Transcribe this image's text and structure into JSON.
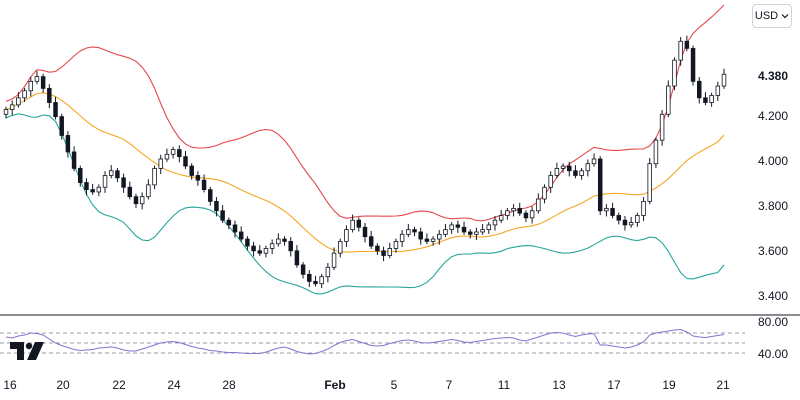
{
  "currency": {
    "label": "USD",
    "icon": "chevron-down-icon"
  },
  "logo": {
    "icon": "tradingview-logo-icon"
  },
  "colors": {
    "upper_band": "#e5484d",
    "middle_band": "#f5a623",
    "lower_band": "#26a69a",
    "rsi_line": "#8c6fd1",
    "candle": "#131722"
  },
  "chart_data": [
    {
      "type": "candlestick",
      "indicator": "Bollinger Bands",
      "ylim": [
        3.35,
        4.65
      ],
      "y_ticks": [
        "4.380",
        "4.200",
        "4.000",
        "3.800",
        "3.600",
        "3.400"
      ],
      "x_ticks": [
        "16",
        "20",
        "22",
        "24",
        "28",
        "Feb",
        "5",
        "7",
        "11",
        "13",
        "17",
        "19",
        "21"
      ],
      "grid": false,
      "close": [
        4.21,
        4.23,
        4.26,
        4.29,
        4.33,
        4.35,
        4.3,
        4.24,
        4.18,
        4.1,
        4.03,
        3.96,
        3.9,
        3.87,
        3.86,
        3.88,
        3.93,
        3.95,
        3.92,
        3.88,
        3.84,
        3.81,
        3.84,
        3.89,
        3.96,
        4.0,
        4.02,
        4.04,
        4.01,
        3.97,
        3.93,
        3.91,
        3.87,
        3.82,
        3.78,
        3.74,
        3.72,
        3.69,
        3.66,
        3.63,
        3.61,
        3.6,
        3.62,
        3.64,
        3.66,
        3.65,
        3.61,
        3.55,
        3.51,
        3.48,
        3.47,
        3.5,
        3.54,
        3.6,
        3.65,
        3.7,
        3.74,
        3.71,
        3.67,
        3.63,
        3.61,
        3.59,
        3.62,
        3.65,
        3.68,
        3.7,
        3.69,
        3.66,
        3.65,
        3.66,
        3.68,
        3.7,
        3.72,
        3.71,
        3.69,
        3.68,
        3.69,
        3.7,
        3.72,
        3.74,
        3.76,
        3.78,
        3.79,
        3.77,
        3.75,
        3.78,
        3.83,
        3.88,
        3.93,
        3.96,
        3.97,
        3.95,
        3.93,
        3.95,
        3.98,
        4.0,
        3.78,
        3.79,
        3.76,
        3.74,
        3.72,
        3.73,
        3.76,
        3.82,
        3.98,
        4.08,
        4.19,
        4.31,
        4.42,
        4.5,
        4.47,
        4.33,
        4.26,
        4.24,
        4.27,
        4.31,
        4.36
      ]
    },
    {
      "type": "line",
      "indicator": "RSI",
      "y_ticks": [
        "80.00",
        "40.00"
      ],
      "levels": [
        70,
        50,
        30
      ],
      "values": [
        62,
        60,
        64,
        66,
        70,
        69,
        66,
        58,
        50,
        45,
        41,
        37,
        35,
        36,
        37,
        40,
        41,
        42,
        40,
        36,
        34,
        34,
        38,
        42,
        46,
        50,
        52,
        53,
        51,
        47,
        43,
        40,
        38,
        35,
        34,
        32,
        31,
        31,
        30,
        29,
        29,
        29,
        32,
        36,
        40,
        42,
        38,
        33,
        30,
        28,
        29,
        33,
        38,
        45,
        51,
        55,
        57,
        53,
        49,
        45,
        44,
        45,
        49,
        52,
        55,
        56,
        54,
        51,
        50,
        51,
        53,
        55,
        57,
        55,
        52,
        51,
        53,
        55,
        57,
        59,
        60,
        61,
        60,
        56,
        54,
        58,
        62,
        66,
        70,
        71,
        70,
        66,
        63,
        66,
        68,
        69,
        46,
        46,
        44,
        42,
        40,
        42,
        46,
        52,
        66,
        70,
        72,
        74,
        76,
        77,
        72,
        64,
        62,
        61,
        63,
        65,
        67
      ]
    }
  ]
}
